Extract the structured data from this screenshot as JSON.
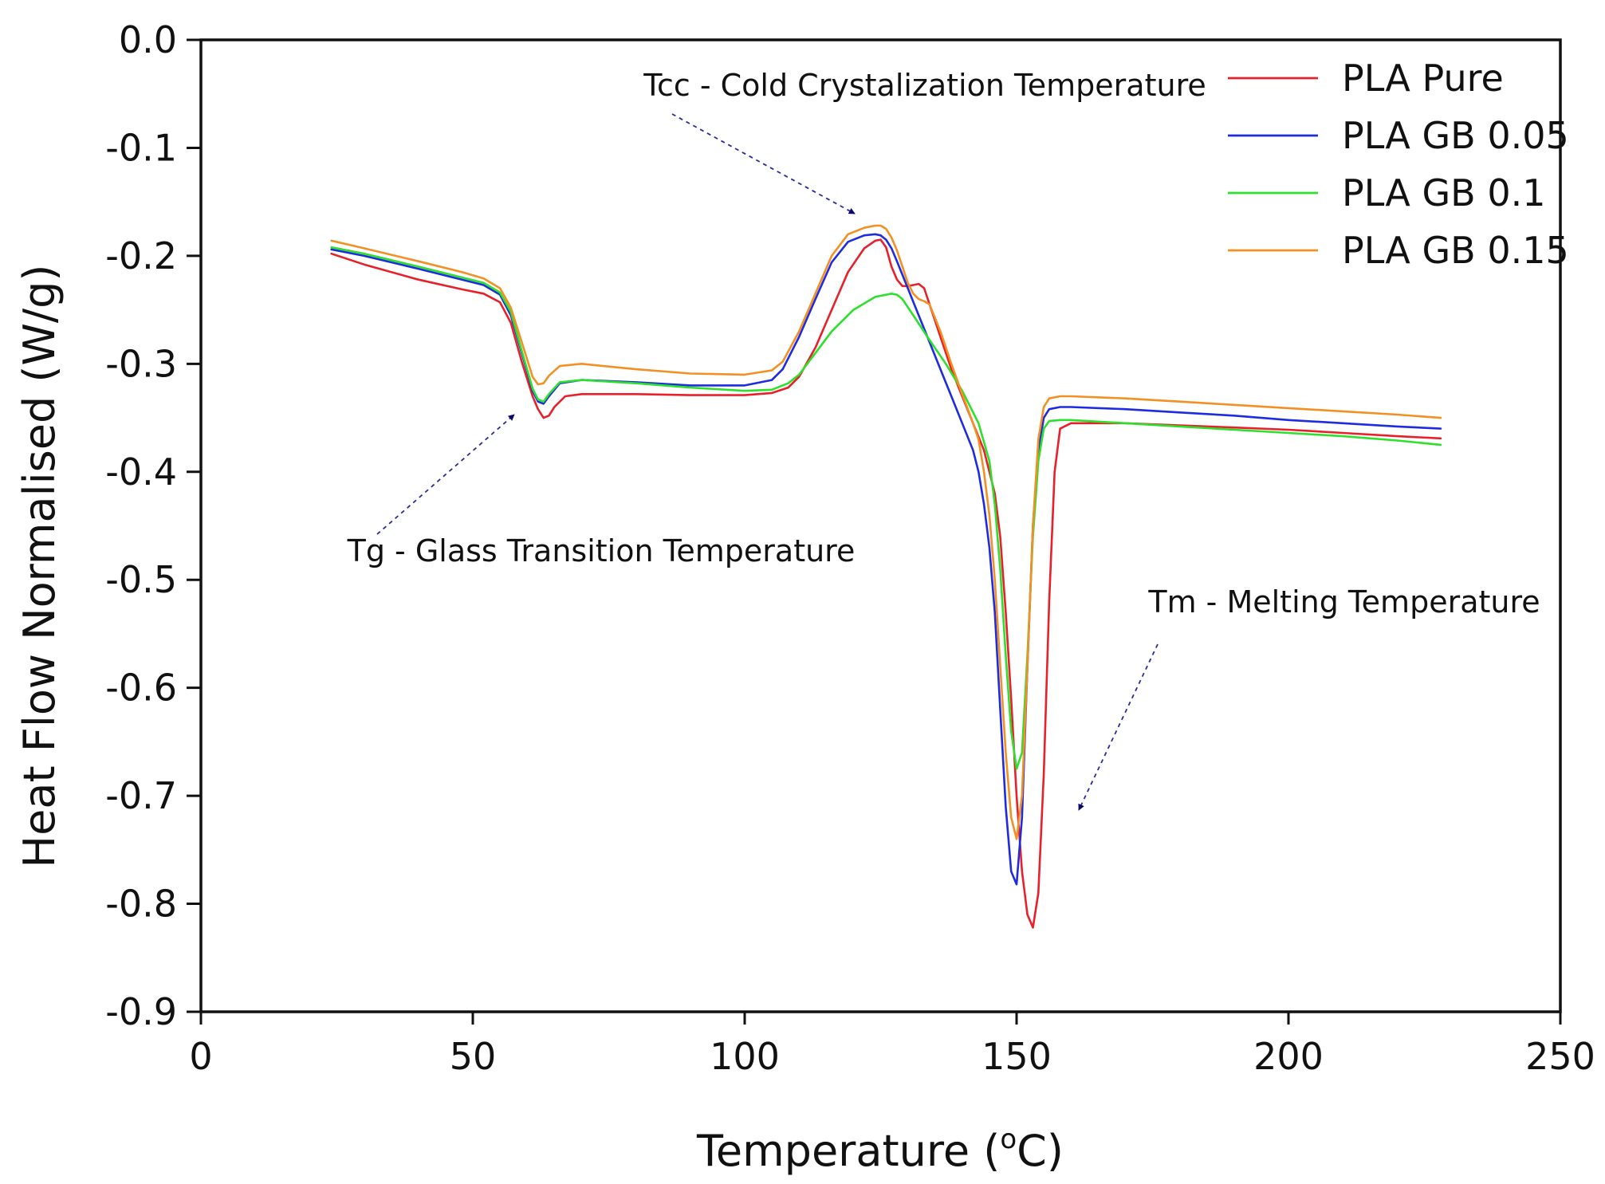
{
  "chart_data": {
    "type": "line",
    "title": "",
    "xlabel": "Temperature (",
    "xlabel_sup": "o",
    "xlabel_suffix": "C)",
    "ylabel": "Heat Flow Normalised (W/g)",
    "xlim": [
      0,
      250
    ],
    "ylim": [
      -0.9,
      0.0
    ],
    "x_ticks": [
      "0",
      "50",
      "100",
      "150",
      "200",
      "250"
    ],
    "x_tick_values": [
      0,
      50,
      100,
      150,
      200,
      250
    ],
    "y_ticks": [
      "0.0",
      "-0.1",
      "-0.2",
      "-0.3",
      "-0.4",
      "-0.5",
      "-0.6",
      "-0.7",
      "-0.8",
      "-0.9"
    ],
    "y_tick_values": [
      0.0,
      -0.1,
      -0.2,
      -0.3,
      -0.4,
      -0.5,
      -0.6,
      -0.7,
      -0.8,
      -0.9
    ],
    "legend_position": "top-right",
    "series": [
      {
        "name": "PLA Pure",
        "color": "#e8202a",
        "x": [
          24,
          30,
          40,
          48,
          52,
          55,
          57,
          59,
          61,
          62,
          63,
          64,
          65,
          67,
          70,
          80,
          90,
          100,
          105,
          108,
          110,
          113,
          116,
          119,
          122,
          124,
          125,
          126,
          127,
          128,
          129,
          130,
          131,
          132,
          133,
          134,
          136,
          138,
          140,
          142,
          144,
          146,
          147,
          148,
          149,
          150,
          151,
          152,
          153,
          154,
          155,
          156,
          157,
          158,
          160,
          170,
          180,
          190,
          200,
          210,
          220,
          228
        ],
        "y": [
          -0.198,
          -0.208,
          -0.222,
          -0.231,
          -0.235,
          -0.243,
          -0.262,
          -0.298,
          -0.33,
          -0.342,
          -0.35,
          -0.348,
          -0.34,
          -0.33,
          -0.328,
          -0.328,
          -0.329,
          -0.329,
          -0.327,
          -0.322,
          -0.312,
          -0.285,
          -0.25,
          -0.215,
          -0.193,
          -0.186,
          -0.185,
          -0.192,
          -0.21,
          -0.222,
          -0.228,
          -0.228,
          -0.227,
          -0.226,
          -0.23,
          -0.245,
          -0.275,
          -0.305,
          -0.33,
          -0.355,
          -0.38,
          -0.42,
          -0.46,
          -0.53,
          -0.61,
          -0.7,
          -0.77,
          -0.81,
          -0.822,
          -0.79,
          -0.68,
          -0.52,
          -0.4,
          -0.36,
          -0.355,
          -0.355,
          -0.357,
          -0.359,
          -0.361,
          -0.364,
          -0.367,
          -0.369
        ]
      },
      {
        "name": "PLA GB 0.05",
        "color": "#1f2be0",
        "x": [
          24,
          30,
          40,
          48,
          52,
          55,
          57,
          59,
          61,
          62,
          63,
          64,
          66,
          70,
          80,
          90,
          100,
          105,
          107,
          110,
          113,
          116,
          119,
          122,
          124,
          125,
          126,
          127,
          128,
          130,
          132,
          134,
          136,
          138,
          140,
          142,
          143,
          144,
          145,
          146,
          147,
          148,
          149,
          150,
          151,
          152,
          153,
          154,
          155,
          156,
          158,
          160,
          170,
          180,
          190,
          200,
          210,
          220,
          228
        ],
        "y": [
          -0.194,
          -0.2,
          -0.212,
          -0.222,
          -0.227,
          -0.236,
          -0.255,
          -0.29,
          -0.325,
          -0.335,
          -0.337,
          -0.33,
          -0.318,
          -0.315,
          -0.317,
          -0.32,
          -0.32,
          -0.315,
          -0.305,
          -0.275,
          -0.24,
          -0.206,
          -0.187,
          -0.181,
          -0.18,
          -0.181,
          -0.185,
          -0.193,
          -0.205,
          -0.23,
          -0.255,
          -0.28,
          -0.305,
          -0.33,
          -0.355,
          -0.38,
          -0.4,
          -0.43,
          -0.47,
          -0.53,
          -0.62,
          -0.71,
          -0.77,
          -0.782,
          -0.72,
          -0.58,
          -0.45,
          -0.38,
          -0.35,
          -0.342,
          -0.34,
          -0.34,
          -0.342,
          -0.345,
          -0.348,
          -0.352,
          -0.355,
          -0.358,
          -0.36
        ]
      },
      {
        "name": "PLA GB 0.1",
        "color": "#2ee02e",
        "x": [
          24,
          30,
          40,
          48,
          52,
          55,
          57,
          59,
          61,
          62,
          63,
          64,
          66,
          70,
          80,
          90,
          100,
          105,
          108,
          110,
          113,
          116,
          120,
          124,
          127,
          128,
          129,
          131,
          134,
          137,
          140,
          143,
          145,
          146,
          147,
          148,
          149,
          150,
          151,
          152,
          153,
          154,
          155,
          156,
          158,
          160,
          170,
          180,
          190,
          200,
          210,
          220,
          228
        ],
        "y": [
          -0.192,
          -0.198,
          -0.21,
          -0.22,
          -0.225,
          -0.234,
          -0.252,
          -0.288,
          -0.323,
          -0.333,
          -0.335,
          -0.328,
          -0.317,
          -0.315,
          -0.318,
          -0.322,
          -0.325,
          -0.324,
          -0.318,
          -0.31,
          -0.29,
          -0.27,
          -0.25,
          -0.238,
          -0.235,
          -0.236,
          -0.24,
          -0.255,
          -0.278,
          -0.3,
          -0.325,
          -0.355,
          -0.39,
          -0.43,
          -0.49,
          -0.57,
          -0.64,
          -0.675,
          -0.66,
          -0.57,
          -0.46,
          -0.39,
          -0.36,
          -0.353,
          -0.352,
          -0.352,
          -0.355,
          -0.358,
          -0.361,
          -0.364,
          -0.367,
          -0.371,
          -0.375
        ]
      },
      {
        "name": "PLA GB 0.15",
        "color": "#f29024",
        "x": [
          24,
          30,
          40,
          48,
          52,
          55,
          57,
          59,
          61,
          62,
          63,
          64,
          66,
          70,
          80,
          90,
          100,
          105,
          107,
          110,
          113,
          116,
          119,
          122,
          124,
          125,
          126,
          127,
          128,
          129,
          130,
          131,
          132,
          133,
          134,
          136,
          138,
          140,
          142,
          143,
          144,
          145,
          146,
          147,
          148,
          149,
          150,
          151,
          152,
          153,
          154,
          155,
          156,
          158,
          160,
          170,
          180,
          190,
          200,
          210,
          220,
          228
        ],
        "y": [
          -0.186,
          -0.193,
          -0.205,
          -0.215,
          -0.221,
          -0.23,
          -0.248,
          -0.28,
          -0.312,
          -0.319,
          -0.318,
          -0.311,
          -0.302,
          -0.3,
          -0.305,
          -0.309,
          -0.31,
          -0.306,
          -0.298,
          -0.27,
          -0.235,
          -0.2,
          -0.18,
          -0.174,
          -0.172,
          -0.172,
          -0.175,
          -0.183,
          -0.195,
          -0.21,
          -0.225,
          -0.235,
          -0.24,
          -0.242,
          -0.245,
          -0.27,
          -0.3,
          -0.328,
          -0.355,
          -0.37,
          -0.4,
          -0.44,
          -0.5,
          -0.58,
          -0.66,
          -0.72,
          -0.74,
          -0.7,
          -0.58,
          -0.45,
          -0.37,
          -0.34,
          -0.332,
          -0.33,
          -0.33,
          -0.332,
          -0.335,
          -0.338,
          -0.341,
          -0.344,
          -0.347,
          -0.35
        ]
      }
    ],
    "annotations": [
      {
        "name": "tcc",
        "text": "Tcc - Cold Crystalization Temperature",
        "point_to": [
          121,
          -0.17
        ]
      },
      {
        "name": "tg",
        "text": "Tg - Glass Transition Temperature",
        "point_to": [
          58,
          -0.34
        ]
      },
      {
        "name": "tm",
        "text": "Tm - Melting Temperature",
        "point_to": [
          155,
          -0.715
        ]
      }
    ]
  }
}
